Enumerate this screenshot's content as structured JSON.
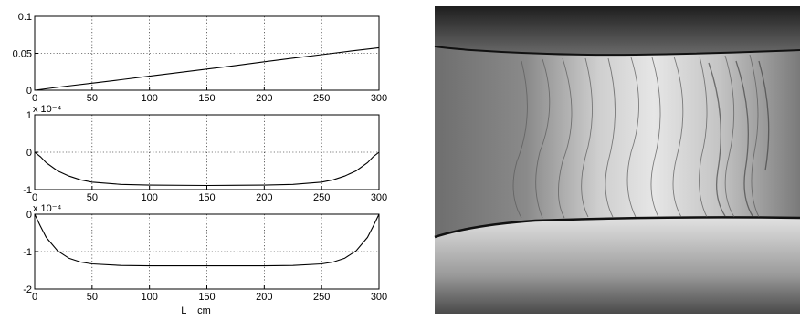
{
  "chart_data": [
    {
      "type": "line",
      "xlim": [
        0,
        300
      ],
      "ylim": [
        0,
        0.1
      ],
      "xticks": [
        "0",
        "50",
        "100",
        "150",
        "200",
        "250",
        "300"
      ],
      "yticks": [
        "0",
        "0.05",
        "0.1"
      ],
      "grid": true,
      "x": [
        0,
        25,
        50,
        75,
        100,
        125,
        150,
        175,
        200,
        225,
        250,
        275,
        300
      ],
      "values": [
        0.0,
        0.005,
        0.0095,
        0.0142,
        0.019,
        0.0238,
        0.0287,
        0.0335,
        0.0385,
        0.0434,
        0.0482,
        0.053,
        0.0575
      ]
    },
    {
      "type": "line",
      "xlim": [
        0,
        300
      ],
      "ylim": [
        -1,
        1
      ],
      "exponent_label": "x 10⁻⁴",
      "xticks": [
        "0",
        "50",
        "100",
        "150",
        "200",
        "250",
        "300"
      ],
      "yticks": [
        "-1",
        "0",
        "1"
      ],
      "grid": true,
      "x": [
        0,
        5,
        10,
        20,
        30,
        40,
        50,
        75,
        100,
        150,
        200,
        225,
        250,
        260,
        270,
        280,
        290,
        295,
        300
      ],
      "values": [
        0,
        -0.12,
        -0.28,
        -0.5,
        -0.64,
        -0.74,
        -0.8,
        -0.86,
        -0.88,
        -0.89,
        -0.88,
        -0.86,
        -0.8,
        -0.74,
        -0.64,
        -0.5,
        -0.28,
        -0.12,
        0
      ]
    },
    {
      "type": "line",
      "xlim": [
        0,
        300
      ],
      "ylim": [
        -2,
        0
      ],
      "exponent_label": "x 10⁻⁴",
      "xticks": [
        "0",
        "50",
        "100",
        "150",
        "200",
        "250",
        "300"
      ],
      "yticks": [
        "-2",
        "-1",
        "0"
      ],
      "grid": true,
      "xlabel": "L    cm",
      "x": [
        0,
        5,
        10,
        20,
        30,
        40,
        50,
        75,
        100,
        150,
        200,
        225,
        250,
        260,
        270,
        280,
        290,
        295,
        300
      ],
      "values": [
        0,
        -0.32,
        -0.62,
        -0.98,
        -1.18,
        -1.28,
        -1.33,
        -1.37,
        -1.38,
        -1.38,
        -1.38,
        -1.37,
        -1.33,
        -1.28,
        -1.18,
        -0.98,
        -0.62,
        -0.32,
        0
      ]
    }
  ],
  "photo": {
    "icon": "flow-photograph",
    "colors": {
      "dark": "#2a2a2a",
      "mid": "#8c8c8c",
      "light": "#e8e8e8"
    }
  }
}
